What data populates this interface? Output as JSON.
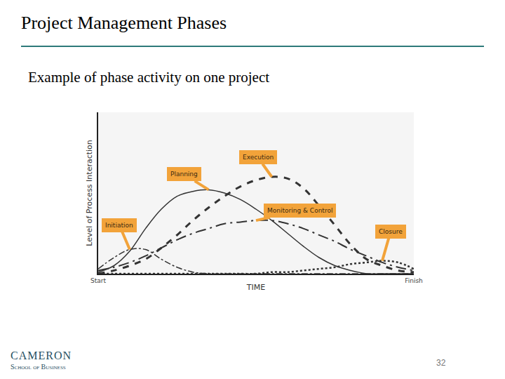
{
  "slide": {
    "title": "Project Management Phases",
    "subtitle": "Example of phase activity on one project",
    "logo": "CAMERON",
    "logo_subtitle": "School of Business",
    "page_number": "32"
  },
  "chart_data": {
    "type": "line",
    "x_label": "TIME",
    "y_label": "Level of Process Interaction",
    "x": [
      0,
      5,
      10,
      15,
      20,
      25,
      30,
      35,
      40,
      45,
      50,
      55,
      60,
      65,
      70,
      75,
      80,
      85,
      90,
      95,
      100
    ],
    "xlim": [
      0,
      100
    ],
    "xticks": [
      {
        "value": 0,
        "label": "Start"
      },
      {
        "value": 100,
        "label": "Finish"
      }
    ],
    "ylim": [
      0,
      100
    ],
    "tick_labels": "x",
    "grid": false,
    "series": [
      {
        "name": "Initiation",
        "color": "#333333",
        "line_style": "dashdot",
        "values": [
          3,
          10,
          15,
          15,
          9,
          4,
          1,
          0,
          0,
          0,
          0,
          0,
          0,
          0,
          0,
          0,
          0,
          0,
          0,
          0,
          0
        ]
      },
      {
        "name": "Planning",
        "color": "#333333",
        "line_style": "solid",
        "values": [
          1,
          5,
          14,
          28,
          40,
          48,
          51,
          52,
          50,
          46,
          40,
          33,
          25,
          17,
          10,
          5,
          2,
          0,
          0,
          0,
          0
        ]
      },
      {
        "name": "Execution",
        "color": "#333333",
        "line_style": "dash",
        "values": [
          0,
          2,
          5,
          9,
          16,
          24,
          33,
          41,
          48,
          54,
          58,
          60,
          59,
          53,
          42,
          30,
          18,
          9,
          5,
          2,
          1
        ]
      },
      {
        "name": "Monitoring & Control",
        "color": "#333333",
        "line_style": "longdashdot",
        "values": [
          2,
          4,
          7,
          11,
          16,
          21,
          25,
          28,
          31,
          32,
          33,
          33,
          31,
          28,
          24,
          20,
          15,
          11,
          7,
          4,
          2
        ]
      },
      {
        "name": "Closure",
        "color": "#333333",
        "line_style": "dot",
        "values": [
          0,
          0,
          0,
          0,
          0,
          0,
          0,
          0,
          0,
          0,
          0,
          1,
          1,
          2,
          3,
          4,
          6,
          7,
          8,
          7,
          3
        ]
      }
    ]
  }
}
